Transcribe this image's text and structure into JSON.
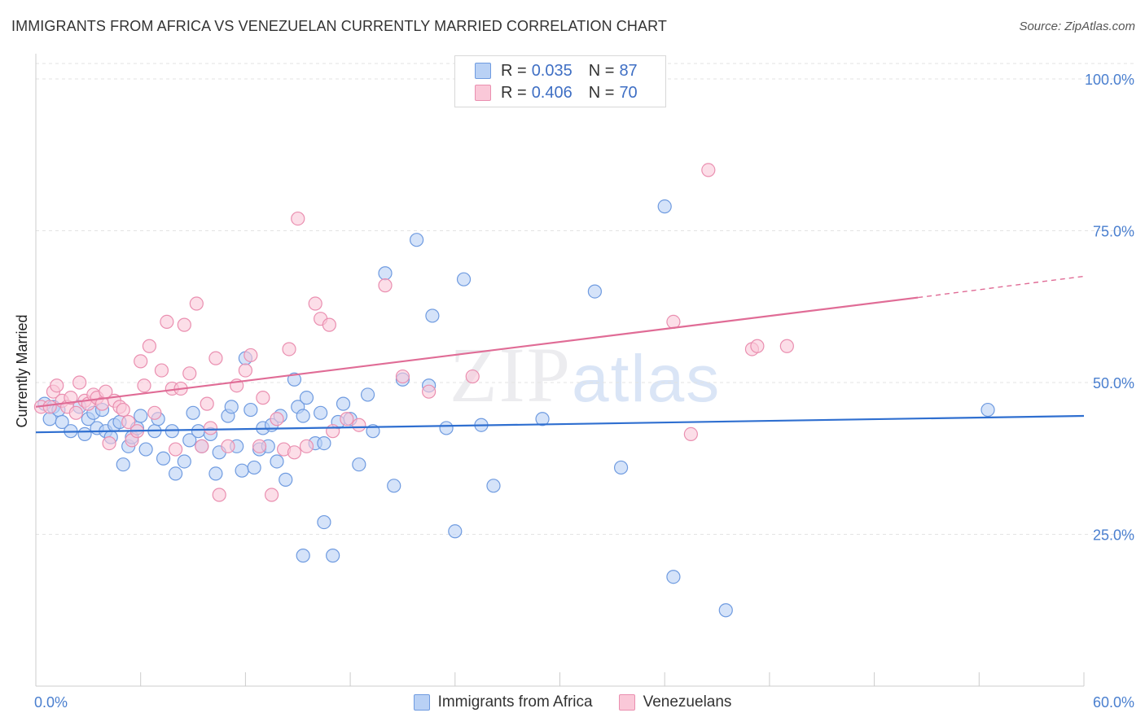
{
  "title": "IMMIGRANTS FROM AFRICA VS VENEZUELAN CURRENTLY MARRIED CORRELATION CHART",
  "source": "Source: ZipAtlas.com",
  "watermark": {
    "zip": "ZIP",
    "atlas": "atlas"
  },
  "legend": {
    "rows": [
      {
        "r_label": "R =",
        "r_value": "0.035",
        "n_label": "N =",
        "n_value": "87",
        "fill": "#b9d1f5",
        "stroke": "#6f9be0"
      },
      {
        "r_label": "R =",
        "r_value": "0.406",
        "n_label": "N =",
        "n_value": "70",
        "fill": "#fac8d8",
        "stroke": "#ea8fb0"
      }
    ]
  },
  "chart_data": {
    "type": "scatter",
    "ylabel": "Currently Married",
    "xlim": [
      0,
      60
    ],
    "ylim": [
      0,
      105
    ],
    "x_tick_labels": [
      {
        "value": 0,
        "label": "0.0%"
      },
      {
        "value": 60,
        "label": "60.0%"
      }
    ],
    "y_tick_labels": [
      {
        "value": 25,
        "label": "25.0%"
      },
      {
        "value": 50,
        "label": "50.0%"
      },
      {
        "value": 75,
        "label": "75.0%"
      },
      {
        "value": 100,
        "label": "100.0%"
      }
    ],
    "grid": true,
    "legend_position": "top-center",
    "series": [
      {
        "name": "Immigrants from Africa",
        "color": "#6f9be0",
        "fill": "#b9d1f5",
        "trend": {
          "x": [
            0,
            60
          ],
          "y": [
            41.8,
            44.5
          ]
        },
        "points": [
          [
            0.5,
            46.5
          ],
          [
            0.8,
            44.0
          ],
          [
            1.0,
            46.0
          ],
          [
            1.3,
            45.5
          ],
          [
            1.5,
            43.5
          ],
          [
            2.0,
            42.0
          ],
          [
            2.5,
            46.0
          ],
          [
            2.8,
            41.5
          ],
          [
            3.0,
            44.0
          ],
          [
            3.3,
            45.0
          ],
          [
            3.5,
            42.5
          ],
          [
            3.8,
            45.5
          ],
          [
            4.0,
            42.0
          ],
          [
            4.3,
            41.0
          ],
          [
            4.5,
            43.0
          ],
          [
            4.8,
            43.5
          ],
          [
            5.0,
            36.5
          ],
          [
            5.3,
            39.5
          ],
          [
            5.5,
            41.0
          ],
          [
            5.8,
            42.5
          ],
          [
            6.0,
            44.5
          ],
          [
            6.3,
            39.0
          ],
          [
            6.8,
            42.0
          ],
          [
            7.0,
            44.0
          ],
          [
            7.3,
            37.5
          ],
          [
            7.8,
            42.0
          ],
          [
            8.0,
            35.0
          ],
          [
            8.5,
            37.0
          ],
          [
            8.8,
            40.5
          ],
          [
            9.0,
            45.0
          ],
          [
            9.3,
            42.0
          ],
          [
            9.5,
            39.5
          ],
          [
            10.0,
            41.5
          ],
          [
            10.3,
            35.0
          ],
          [
            10.5,
            38.5
          ],
          [
            11.0,
            44.5
          ],
          [
            11.2,
            46.0
          ],
          [
            11.5,
            39.5
          ],
          [
            11.8,
            35.5
          ],
          [
            12.0,
            54.0
          ],
          [
            12.3,
            45.5
          ],
          [
            12.5,
            36.0
          ],
          [
            12.8,
            39.0
          ],
          [
            13.0,
            42.5
          ],
          [
            13.3,
            39.5
          ],
          [
            13.5,
            43.0
          ],
          [
            13.8,
            37.0
          ],
          [
            14.0,
            44.5
          ],
          [
            14.3,
            34.0
          ],
          [
            14.8,
            50.5
          ],
          [
            15.0,
            46.0
          ],
          [
            15.3,
            44.5
          ],
          [
            15.5,
            47.5
          ],
          [
            15.3,
            21.5
          ],
          [
            16.0,
            40.0
          ],
          [
            16.3,
            45.0
          ],
          [
            16.5,
            40.0
          ],
          [
            16.5,
            27.0
          ],
          [
            17.0,
            21.5
          ],
          [
            17.3,
            43.5
          ],
          [
            17.6,
            46.5
          ],
          [
            18.0,
            44.0
          ],
          [
            18.5,
            36.5
          ],
          [
            19.0,
            48.0
          ],
          [
            19.3,
            42.0
          ],
          [
            20.0,
            68.0
          ],
          [
            20.5,
            33.0
          ],
          [
            21.0,
            50.5
          ],
          [
            21.8,
            73.5
          ],
          [
            22.5,
            49.5
          ],
          [
            22.7,
            61.0
          ],
          [
            23.5,
            42.5
          ],
          [
            24.0,
            25.5
          ],
          [
            24.5,
            67.0
          ],
          [
            25.5,
            43.0
          ],
          [
            26.2,
            33.0
          ],
          [
            29.0,
            44.0
          ],
          [
            32.0,
            65.0
          ],
          [
            33.5,
            36.0
          ],
          [
            36.0,
            79.0
          ],
          [
            36.5,
            18.0
          ],
          [
            39.5,
            12.5
          ],
          [
            54.5,
            45.5
          ]
        ]
      },
      {
        "name": "Venezuelans",
        "color": "#ea8fb0",
        "fill": "#fac8d8",
        "trend": {
          "x": [
            0,
            50.5
          ],
          "y": [
            46.0,
            64.0
          ]
        },
        "trend_dashed": {
          "x": [
            50.5,
            60
          ],
          "y": [
            64.0,
            67.5
          ]
        },
        "points": [
          [
            0.3,
            46.0
          ],
          [
            0.8,
            46.0
          ],
          [
            1.0,
            48.5
          ],
          [
            1.2,
            49.5
          ],
          [
            1.5,
            47.0
          ],
          [
            1.8,
            46.0
          ],
          [
            2.0,
            47.5
          ],
          [
            2.3,
            45.0
          ],
          [
            2.5,
            50.0
          ],
          [
            2.8,
            47.0
          ],
          [
            3.0,
            46.5
          ],
          [
            3.3,
            48.0
          ],
          [
            3.5,
            47.5
          ],
          [
            3.8,
            46.5
          ],
          [
            4.0,
            48.5
          ],
          [
            4.2,
            40.0
          ],
          [
            4.5,
            47.0
          ],
          [
            4.8,
            46.0
          ],
          [
            5.0,
            45.5
          ],
          [
            5.3,
            43.5
          ],
          [
            5.5,
            40.5
          ],
          [
            5.8,
            42.0
          ],
          [
            6.0,
            53.5
          ],
          [
            6.2,
            49.5
          ],
          [
            6.5,
            56.0
          ],
          [
            6.8,
            45.0
          ],
          [
            7.2,
            52.0
          ],
          [
            7.5,
            60.0
          ],
          [
            7.8,
            49.0
          ],
          [
            8.0,
            39.0
          ],
          [
            8.3,
            49.0
          ],
          [
            8.5,
            59.5
          ],
          [
            8.8,
            51.5
          ],
          [
            9.2,
            63.0
          ],
          [
            9.5,
            39.5
          ],
          [
            9.8,
            46.5
          ],
          [
            10.0,
            42.5
          ],
          [
            10.3,
            54.0
          ],
          [
            10.5,
            31.5
          ],
          [
            11.0,
            39.5
          ],
          [
            11.5,
            49.5
          ],
          [
            12.0,
            52.0
          ],
          [
            12.3,
            54.5
          ],
          [
            12.8,
            39.5
          ],
          [
            13.0,
            47.5
          ],
          [
            13.5,
            31.5
          ],
          [
            13.8,
            44.0
          ],
          [
            14.2,
            39.0
          ],
          [
            14.5,
            55.5
          ],
          [
            14.8,
            38.5
          ],
          [
            15.0,
            77.0
          ],
          [
            15.5,
            39.5
          ],
          [
            16.0,
            63.0
          ],
          [
            16.3,
            60.5
          ],
          [
            16.8,
            59.5
          ],
          [
            17.0,
            42.0
          ],
          [
            17.8,
            44.0
          ],
          [
            18.5,
            43.0
          ],
          [
            20.0,
            66.0
          ],
          [
            21.0,
            51.0
          ],
          [
            22.5,
            48.5
          ],
          [
            25.0,
            51.0
          ],
          [
            36.5,
            60.0
          ],
          [
            37.5,
            41.5
          ],
          [
            38.5,
            85.0
          ],
          [
            41.0,
            55.5
          ],
          [
            41.3,
            56.0
          ],
          [
            43.0,
            56.0
          ]
        ]
      }
    ]
  }
}
